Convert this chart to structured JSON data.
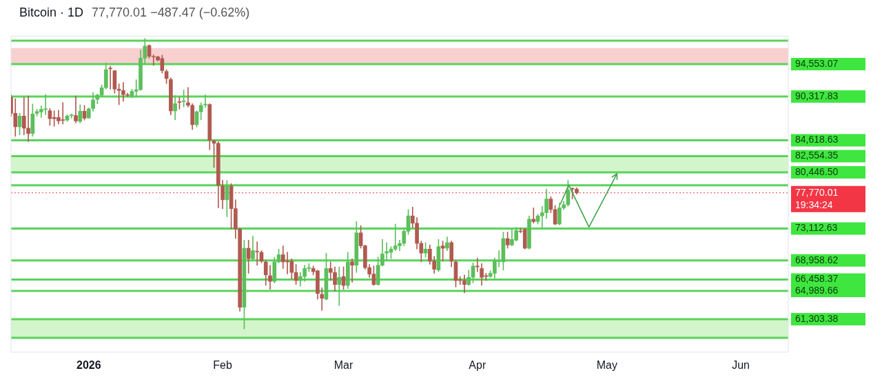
{
  "chart_data": {
    "type": "candlestick",
    "title": "Bitcoin · 1D",
    "subtitle": "77,770.01  −487.47 (−0.62%)",
    "x": [
      "2025-12-14",
      "2025-12-15",
      "2025-12-16",
      "2025-12-17",
      "2025-12-18",
      "2025-12-19",
      "2025-12-20",
      "2025-12-21",
      "2025-12-22",
      "2025-12-23",
      "2025-12-24",
      "2025-12-25",
      "2025-12-26",
      "2025-12-27",
      "2025-12-28",
      "2025-12-29",
      "2025-12-30",
      "2025-12-31",
      "2026-01-01",
      "2026-01-02",
      "2026-01-03",
      "2026-01-04",
      "2026-01-05",
      "2026-01-06",
      "2026-01-07",
      "2026-01-08",
      "2026-01-09",
      "2026-01-10",
      "2026-01-11",
      "2026-01-12",
      "2026-01-13",
      "2026-01-14",
      "2026-01-15",
      "2026-01-16",
      "2026-01-17",
      "2026-01-18",
      "2026-01-19",
      "2026-01-20",
      "2026-01-21",
      "2026-01-22",
      "2026-01-23",
      "2026-01-24",
      "2026-01-25",
      "2026-01-26",
      "2026-01-27",
      "2026-01-28",
      "2026-01-29",
      "2026-01-30",
      "2026-01-31",
      "2026-02-01",
      "2026-02-02",
      "2026-02-03",
      "2026-02-04",
      "2026-02-05",
      "2026-02-06",
      "2026-02-07",
      "2026-02-08",
      "2026-02-09",
      "2026-02-10",
      "2026-02-11",
      "2026-02-12",
      "2026-02-13",
      "2026-02-14",
      "2026-02-15",
      "2026-02-16",
      "2026-02-17",
      "2026-02-18",
      "2026-02-19",
      "2026-02-20",
      "2026-02-21",
      "2026-02-22",
      "2026-02-23",
      "2026-02-24",
      "2026-02-25",
      "2026-02-26",
      "2026-02-27",
      "2026-02-28",
      "2026-03-01",
      "2026-03-02",
      "2026-03-03",
      "2026-03-04",
      "2026-03-05",
      "2026-03-06",
      "2026-03-07",
      "2026-03-08",
      "2026-03-09",
      "2026-03-10",
      "2026-03-11",
      "2026-03-12",
      "2026-03-13",
      "2026-03-14",
      "2026-03-15",
      "2026-03-16",
      "2026-03-17",
      "2026-03-18",
      "2026-03-19",
      "2026-03-20",
      "2026-03-21",
      "2026-03-22",
      "2026-03-23",
      "2026-03-24",
      "2026-03-25",
      "2026-03-26",
      "2026-03-27",
      "2026-03-28",
      "2026-03-29",
      "2026-03-30",
      "2026-03-31",
      "2026-04-01",
      "2026-04-02",
      "2026-04-03",
      "2026-04-04",
      "2026-04-05",
      "2026-04-06",
      "2026-04-07",
      "2026-04-08",
      "2026-04-09",
      "2026-04-10",
      "2026-04-11",
      "2026-04-12",
      "2026-04-13",
      "2026-04-14",
      "2026-04-15",
      "2026-04-16",
      "2026-04-17",
      "2026-04-18",
      "2026-04-19",
      "2026-04-20",
      "2026-04-21",
      "2026-04-22",
      "2026-04-23",
      "2026-04-24"
    ],
    "ohlc": [
      [
        90240,
        90520,
        87780,
        88130
      ],
      [
        88130,
        90060,
        85150,
        86370
      ],
      [
        86370,
        88130,
        85320,
        87780
      ],
      [
        87780,
        90240,
        85320,
        86200
      ],
      [
        86200,
        90420,
        84440,
        85500
      ],
      [
        85500,
        89360,
        85150,
        88060
      ],
      [
        88130,
        88660,
        87780,
        88370
      ],
      [
        88310,
        89110,
        87600,
        88660
      ],
      [
        88630,
        90590,
        87950,
        88690
      ],
      [
        88480,
        88760,
        86550,
        87430
      ],
      [
        87600,
        88480,
        86450,
        87430
      ],
      [
        87600,
        88550,
        86730,
        87150
      ],
      [
        87260,
        89530,
        86730,
        87220
      ],
      [
        87260,
        87950,
        87080,
        87780
      ],
      [
        87850,
        88060,
        87500,
        87890
      ],
      [
        87850,
        90420,
        86900,
        87150
      ],
      [
        87080,
        89260,
        86900,
        88410
      ],
      [
        88410,
        89180,
        87260,
        87500
      ],
      [
        87530,
        88840,
        87500,
        88730
      ],
      [
        88760,
        90870,
        88410,
        89890
      ],
      [
        89950,
        90660,
        89360,
        90520
      ],
      [
        90520,
        91820,
        90340,
        91470
      ],
      [
        91470,
        94730,
        91290,
        93820
      ],
      [
        94030,
        94270,
        91290,
        93920
      ],
      [
        93680,
        93740,
        90760,
        91290
      ],
      [
        91290,
        91990,
        89260,
        91110
      ],
      [
        91110,
        92160,
        89710,
        90590
      ],
      [
        90520,
        90760,
        90310,
        90480
      ],
      [
        90310,
        91290,
        90160,
        91000
      ],
      [
        91000,
        92520,
        90240,
        91220
      ],
      [
        91220,
        96380,
        91110,
        95320
      ],
      [
        95320,
        97900,
        94520,
        96900
      ],
      [
        96980,
        97080,
        95320,
        95570
      ],
      [
        95530,
        95780,
        94370,
        95470
      ],
      [
        95500,
        95570,
        94970,
        95080
      ],
      [
        95290,
        95710,
        93400,
        93710
      ],
      [
        93610,
        93820,
        92030,
        92660
      ],
      [
        92550,
        92760,
        87920,
        88450
      ],
      [
        88450,
        90450,
        87290,
        89390
      ],
      [
        89600,
        90240,
        88660,
        89550
      ],
      [
        89660,
        91180,
        88970,
        89710
      ],
      [
        89500,
        91500,
        88970,
        89180
      ],
      [
        89180,
        89390,
        86020,
        86660
      ],
      [
        86660,
        88450,
        86340,
        88340
      ],
      [
        88340,
        89500,
        87290,
        89180
      ],
      [
        89240,
        90550,
        88870,
        89290
      ],
      [
        89290,
        89390,
        83390,
        84660
      ],
      [
        84550,
        84660,
        81080,
        84230
      ],
      [
        84230,
        84440,
        75810,
        78760
      ],
      [
        78650,
        79390,
        75710,
        76860
      ],
      [
        76860,
        79390,
        74650,
        78650
      ],
      [
        78650,
        78970,
        73070,
        75710
      ],
      [
        75710,
        76860,
        71810,
        73070
      ],
      [
        73070,
        73180,
        62330,
        62860
      ],
      [
        62860,
        71600,
        60020,
        70550
      ],
      [
        70550,
        71600,
        67280,
        69180
      ],
      [
        69180,
        72120,
        68970,
        70230
      ],
      [
        70120,
        71390,
        68330,
        70070
      ],
      [
        70020,
        70230,
        68650,
        68860
      ],
      [
        68760,
        68970,
        65700,
        67070
      ],
      [
        66970,
        68330,
        65180,
        66230
      ],
      [
        66230,
        69390,
        66020,
        68760
      ],
      [
        68760,
        70440,
        68650,
        69700
      ],
      [
        69700,
        70860,
        67910,
        68760
      ],
      [
        68860,
        70020,
        67180,
        68760
      ],
      [
        68860,
        69180,
        66540,
        67390
      ],
      [
        67390,
        68440,
        65810,
        66330
      ],
      [
        66330,
        67390,
        65600,
        66860
      ],
      [
        66860,
        68330,
        66230,
        67910
      ],
      [
        67910,
        68540,
        67490,
        68020
      ],
      [
        67910,
        68230,
        67070,
        67490
      ],
      [
        67600,
        67700,
        63910,
        64650
      ],
      [
        64540,
        65390,
        62440,
        64020
      ],
      [
        63910,
        69910,
        63800,
        67910
      ],
      [
        67910,
        68760,
        66330,
        67390
      ],
      [
        67390,
        68120,
        64960,
        65810
      ],
      [
        65810,
        68120,
        63070,
        66750
      ],
      [
        66860,
        68120,
        65180,
        65700
      ],
      [
        65700,
        70020,
        65280,
        68760
      ],
      [
        68760,
        69180,
        66120,
        68330
      ],
      [
        68330,
        74020,
        67390,
        72550
      ],
      [
        72550,
        73490,
        70550,
        70860
      ],
      [
        70860,
        70970,
        67810,
        68020
      ],
      [
        68020,
        68440,
        66750,
        67180
      ],
      [
        67180,
        68230,
        65700,
        65810
      ],
      [
        65810,
        69390,
        65700,
        68330
      ],
      [
        68330,
        71700,
        68230,
        69810
      ],
      [
        69910,
        71280,
        68970,
        70120
      ],
      [
        70020,
        70760,
        69180,
        70440
      ],
      [
        70440,
        73700,
        70230,
        70860
      ],
      [
        70860,
        71600,
        70230,
        71180
      ],
      [
        71180,
        73180,
        70860,
        72760
      ],
      [
        72760,
        75600,
        72340,
        74760
      ],
      [
        74760,
        75920,
        73280,
        73810
      ],
      [
        73810,
        74550,
        70440,
        71180
      ],
      [
        71180,
        71490,
        68760,
        69910
      ],
      [
        69910,
        71280,
        69390,
        70440
      ],
      [
        70440,
        70970,
        68440,
        68860
      ],
      [
        68860,
        69490,
        67280,
        67810
      ],
      [
        67700,
        71700,
        67490,
        70760
      ],
      [
        70860,
        71490,
        68860,
        70550
      ],
      [
        70550,
        72020,
        70230,
        71280
      ],
      [
        71280,
        71490,
        68120,
        68860
      ],
      [
        68760,
        68970,
        65490,
        66330
      ],
      [
        66440,
        66860,
        65810,
        66330
      ],
      [
        66330,
        67070,
        64750,
        65810
      ],
      [
        65810,
        67700,
        65700,
        66750
      ],
      [
        66750,
        68650,
        66020,
        68230
      ],
      [
        68230,
        69280,
        67490,
        68120
      ],
      [
        67910,
        68540,
        65700,
        66750
      ],
      [
        66970,
        67280,
        66330,
        66860
      ],
      [
        66860,
        67600,
        66750,
        67280
      ],
      [
        67280,
        69280,
        66650,
        68970
      ],
      [
        68810,
        70230,
        68120,
        68910
      ],
      [
        68760,
        72650,
        67700,
        71810
      ],
      [
        71810,
        72650,
        70550,
        70970
      ],
      [
        70970,
        73070,
        70860,
        71700
      ],
      [
        71600,
        73280,
        71490,
        72860
      ],
      [
        72760,
        73180,
        72550,
        72710
      ],
      [
        72970,
        73180,
        70440,
        70550
      ],
      [
        70550,
        74760,
        70440,
        74340
      ],
      [
        74340,
        75810,
        73810,
        74020
      ],
      [
        74020,
        74970,
        73700,
        74760
      ],
      [
        74760,
        76020,
        73180,
        75180
      ],
      [
        75180,
        78230,
        74440,
        76970
      ],
      [
        76970,
        77280,
        75180,
        75600
      ],
      [
        75600,
        76130,
        73600,
        73700
      ],
      [
        73700,
        76440,
        73600,
        75810
      ],
      [
        75810,
        76650,
        75600,
        76230
      ],
      [
        76230,
        79390,
        76020,
        78130
      ],
      [
        78300,
        78440,
        76970,
        78260
      ],
      [
        78260,
        78440,
        77600,
        77770.01
      ]
    ],
    "colors": [
      "#b05a50",
      "#b05a50",
      "#5cbf5c",
      "#b05a50",
      "#b05a50",
      "#5cbf5c",
      "#5cbf5c",
      "#5cbf5c",
      "#5cbf5c",
      "#b05a50",
      "#b05a50",
      "#b05a50",
      "#b05a50",
      "#5cbf5c",
      "#5cbf5c",
      "#b05a50",
      "#5cbf5c",
      "#b05a50",
      "#5cbf5c",
      "#5cbf5c",
      "#5cbf5c",
      "#5cbf5c",
      "#5cbf5c",
      "#b05a50",
      "#b05a50",
      "#b05a50",
      "#b05a50",
      "#b05a50",
      "#5cbf5c",
      "#5cbf5c",
      "#5cbf5c",
      "#5cbf5c",
      "#b05a50",
      "#b05a50",
      "#b05a50",
      "#b05a50",
      "#b05a50",
      "#b05a50",
      "#5cbf5c",
      "#b05a50",
      "#5cbf5c",
      "#b05a50",
      "#b05a50",
      "#5cbf5c",
      "#5cbf5c",
      "#5cbf5c",
      "#b05a50",
      "#b05a50",
      "#b05a50",
      "#b05a50",
      "#5cbf5c",
      "#b05a50",
      "#b05a50",
      "#b05a50",
      "#5cbf5c",
      "#b05a50",
      "#5cbf5c",
      "#b05a50",
      "#b05a50",
      "#b05a50",
      "#b05a50",
      "#5cbf5c",
      "#5cbf5c",
      "#b05a50",
      "#b05a50",
      "#b05a50",
      "#b05a50",
      "#5cbf5c",
      "#5cbf5c",
      "#5cbf5c",
      "#b05a50",
      "#b05a50",
      "#b05a50",
      "#5cbf5c",
      "#b05a50",
      "#b05a50",
      "#5cbf5c",
      "#b05a50",
      "#5cbf5c",
      "#b05a50",
      "#5cbf5c",
      "#b05a50",
      "#b05a50",
      "#b05a50",
      "#b05a50",
      "#5cbf5c",
      "#5cbf5c",
      "#5cbf5c",
      "#5cbf5c",
      "#5cbf5c",
      "#5cbf5c",
      "#5cbf5c",
      "#5cbf5c",
      "#b05a50",
      "#b05a50",
      "#b05a50",
      "#5cbf5c",
      "#b05a50",
      "#b05a50",
      "#5cbf5c",
      "#b05a50",
      "#5cbf5c",
      "#b05a50",
      "#b05a50",
      "#b05a50",
      "#b05a50",
      "#5cbf5c",
      "#5cbf5c",
      "#b05a50",
      "#b05a50",
      "#b05a50",
      "#5cbf5c",
      "#5cbf5c",
      "#5cbf5c",
      "#5cbf5c",
      "#b05a50",
      "#5cbf5c",
      "#5cbf5c",
      "#b05a50",
      "#b05a50",
      "#5cbf5c",
      "#b05a50",
      "#5cbf5c",
      "#5cbf5c",
      "#5cbf5c",
      "#b05a50",
      "#b05a50",
      "#5cbf5c",
      "#5cbf5c",
      "#5cbf5c",
      "#b05a50",
      "#b05a50"
    ],
    "xlim": [
      "2025-12-14",
      "2026-06-12"
    ],
    "xticks": [
      {
        "value": "2026-01-01",
        "label": "2026"
      },
      {
        "value": "2026-02-01",
        "label": "Feb"
      },
      {
        "value": "2026-03-01",
        "label": "Mar"
      },
      {
        "value": "2026-04-01",
        "label": "Apr"
      },
      {
        "value": "2026-05-01",
        "label": "May"
      },
      {
        "value": "2026-06-01",
        "label": "Jun"
      }
    ],
    "ylim": [
      57000,
      98200
    ],
    "yticks": [
      {
        "value": 94553.07,
        "label": "94,553.07"
      },
      {
        "value": 90317.83,
        "label": "90,317.83"
      },
      {
        "value": 84618.63,
        "label": "84,618.63"
      },
      {
        "value": 82554.35,
        "label": "82,554.35"
      },
      {
        "value": 80446.5,
        "label": "80,446.50"
      },
      {
        "value": 73112.63,
        "label": "73,112.63"
      },
      {
        "value": 68958.62,
        "label": "68,958.62"
      },
      {
        "value": 66458.37,
        "label": "66,458.37"
      },
      {
        "value": 64989.66,
        "label": "64,989.66"
      },
      {
        "value": 61303.38,
        "label": "61,303.38"
      }
    ],
    "bands": [
      {
        "axis": "y",
        "from": 94553.07,
        "to": 96650,
        "color": "#f9d0d0"
      },
      {
        "axis": "y",
        "from": 80446.5,
        "to": 82554.35,
        "color": "#d3f5cc"
      },
      {
        "axis": "y",
        "from": 58860,
        "to": 61303.38,
        "color": "#d3f5cc"
      }
    ],
    "ref_lines": [
      {
        "axis": "y",
        "value": 97600,
        "color": "#5ad35a"
      },
      {
        "axis": "y",
        "value": 94553.07,
        "color": "#5ad35a"
      },
      {
        "axis": "y",
        "value": 90317.83,
        "color": "#5ad35a"
      },
      {
        "axis": "y",
        "value": 84618.63,
        "color": "#5ad35a"
      },
      {
        "axis": "y",
        "value": 82554.35,
        "color": "#5ad35a"
      },
      {
        "axis": "y",
        "value": 80446.5,
        "color": "#5ad35a"
      },
      {
        "axis": "y",
        "value": 78760,
        "color": "#5ad35a"
      },
      {
        "axis": "y",
        "value": 73112.63,
        "color": "#5ad35a"
      },
      {
        "axis": "y",
        "value": 68958.62,
        "color": "#5ad35a"
      },
      {
        "axis": "y",
        "value": 66458.37,
        "color": "#5ad35a"
      },
      {
        "axis": "y",
        "value": 64989.66,
        "color": "#5ad35a"
      },
      {
        "axis": "y",
        "value": 61303.38,
        "color": "#5ad35a"
      },
      {
        "axis": "y",
        "value": 58860,
        "color": "#5ad35a"
      },
      {
        "axis": "y",
        "value": 77770.01,
        "label": "77,770.01",
        "color": "#f23645",
        "line_style": "dotted"
      }
    ],
    "annotations": [
      "19:34:24"
    ]
  }
}
